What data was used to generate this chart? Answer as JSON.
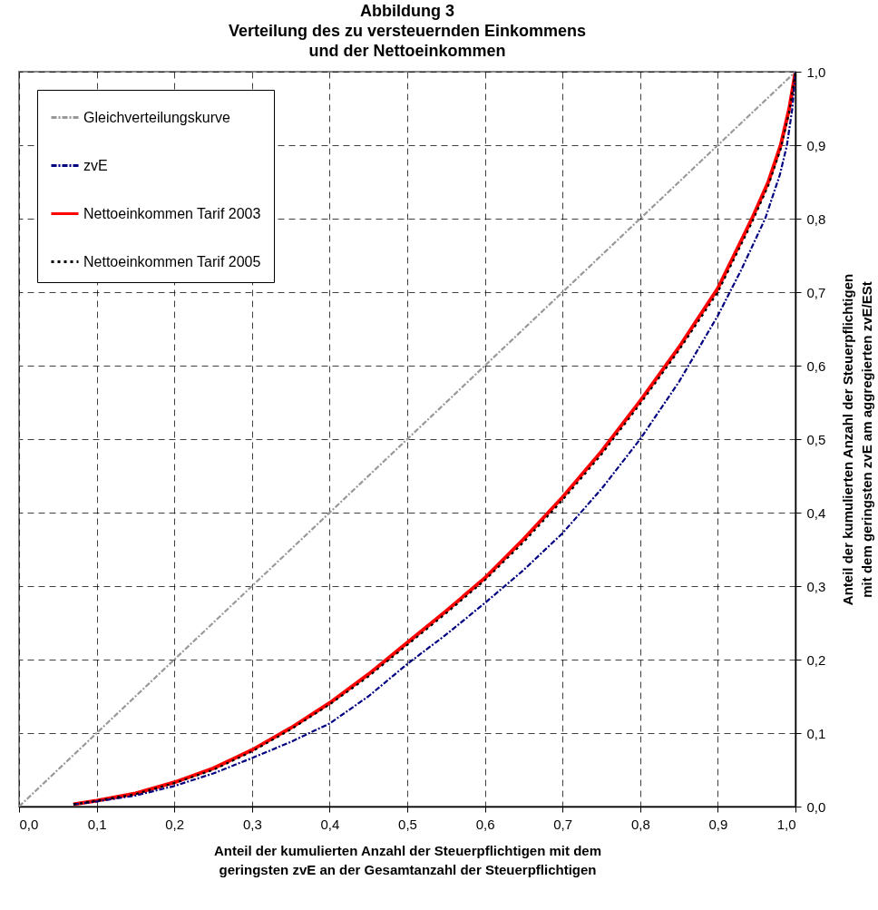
{
  "chart_data": {
    "type": "line",
    "title": "Abbildung 3\nVerteilung des zu versteuernden Einkommens\nund der Nettoeinkommen",
    "xlabel": "Anteil der kumulierten Anzahl der Steuerpflichtigen mit dem\ngeringsten zvE an der Gesamtanzahl der Steuerpflichtigen",
    "ylabel": "Anteil der kumulierten Anzahl der Steuerpflichtigen\nmit dem geringsten zvE am aggregierten zvE/ESt",
    "xlim": [
      0,
      1
    ],
    "ylim": [
      0,
      1
    ],
    "xticks": [
      {
        "value": 0,
        "label": "0,0"
      },
      {
        "value": 0.1,
        "label": "0,1"
      },
      {
        "value": 0.2,
        "label": "0,2"
      },
      {
        "value": 0.3,
        "label": "0,3"
      },
      {
        "value": 0.4,
        "label": "0,4"
      },
      {
        "value": 0.5,
        "label": "0,5"
      },
      {
        "value": 0.6,
        "label": "0,6"
      },
      {
        "value": 0.7,
        "label": "0,7"
      },
      {
        "value": 0.8,
        "label": "0,8"
      },
      {
        "value": 0.9,
        "label": "0,9"
      },
      {
        "value": 1,
        "label": "1,0"
      }
    ],
    "yticks": [
      {
        "value": 0,
        "label": "0,0"
      },
      {
        "value": 0.1,
        "label": "0,1"
      },
      {
        "value": 0.2,
        "label": "0,2"
      },
      {
        "value": 0.3,
        "label": "0,3"
      },
      {
        "value": 0.4,
        "label": "0,4"
      },
      {
        "value": 0.5,
        "label": "0,5"
      },
      {
        "value": 0.6,
        "label": "0,6"
      },
      {
        "value": 0.7,
        "label": "0,7"
      },
      {
        "value": 0.8,
        "label": "0,8"
      },
      {
        "value": 0.9,
        "label": "0,9"
      },
      {
        "value": 1,
        "label": "1,0"
      }
    ],
    "grid": true,
    "legend": "top left",
    "series": [
      {
        "name": "Gleichverteilungskurve",
        "color": "#999999",
        "line_style": "dashed",
        "x": [
          0,
          1
        ],
        "values": [
          0,
          1
        ]
      },
      {
        "name": "zvE",
        "color": "#000080",
        "line_style": "dashed",
        "x": [
          0.07,
          0.1,
          0.15,
          0.2,
          0.25,
          0.3,
          0.35,
          0.4,
          0.45,
          0.5,
          0.55,
          0.6,
          0.65,
          0.7,
          0.75,
          0.8,
          0.85,
          0.9,
          0.93,
          0.961,
          0.98,
          0.989,
          0.996,
          1
        ],
        "values": [
          0.003,
          0.007,
          0.015,
          0.028,
          0.045,
          0.066,
          0.088,
          0.113,
          0.15,
          0.194,
          0.234,
          0.277,
          0.322,
          0.372,
          0.432,
          0.5,
          0.578,
          0.668,
          0.73,
          0.8,
          0.86,
          0.9,
          0.95,
          1
        ]
      },
      {
        "name": "Nettoeinkommen Tarif 2003",
        "color": "#ff0000",
        "line_style": "solid",
        "x": [
          0.07,
          0.1,
          0.15,
          0.2,
          0.25,
          0.3,
          0.35,
          0.4,
          0.45,
          0.5,
          0.55,
          0.6,
          0.65,
          0.7,
          0.75,
          0.8,
          0.85,
          0.9,
          0.944,
          0.965,
          0.981,
          0.992,
          1
        ],
        "values": [
          0.003,
          0.008,
          0.018,
          0.033,
          0.052,
          0.077,
          0.107,
          0.141,
          0.18,
          0.223,
          0.266,
          0.311,
          0.364,
          0.421,
          0.483,
          0.552,
          0.625,
          0.705,
          0.8,
          0.85,
          0.9,
          0.95,
          1
        ]
      },
      {
        "name": "Nettoeinkommen Tarif 2005",
        "color": "#000000",
        "line_style": "dotted",
        "x": [
          0.07,
          0.1,
          0.15,
          0.2,
          0.25,
          0.3,
          0.35,
          0.4,
          0.45,
          0.5,
          0.55,
          0.6,
          0.65,
          0.7,
          0.75,
          0.8,
          0.85,
          0.9,
          0.944,
          0.965,
          0.981,
          0.992,
          1
        ],
        "values": [
          0.003,
          0.008,
          0.017,
          0.032,
          0.05,
          0.075,
          0.105,
          0.139,
          0.177,
          0.22,
          0.263,
          0.308,
          0.36,
          0.417,
          0.479,
          0.548,
          0.621,
          0.7,
          0.795,
          0.845,
          0.895,
          0.945,
          1
        ]
      }
    ]
  }
}
